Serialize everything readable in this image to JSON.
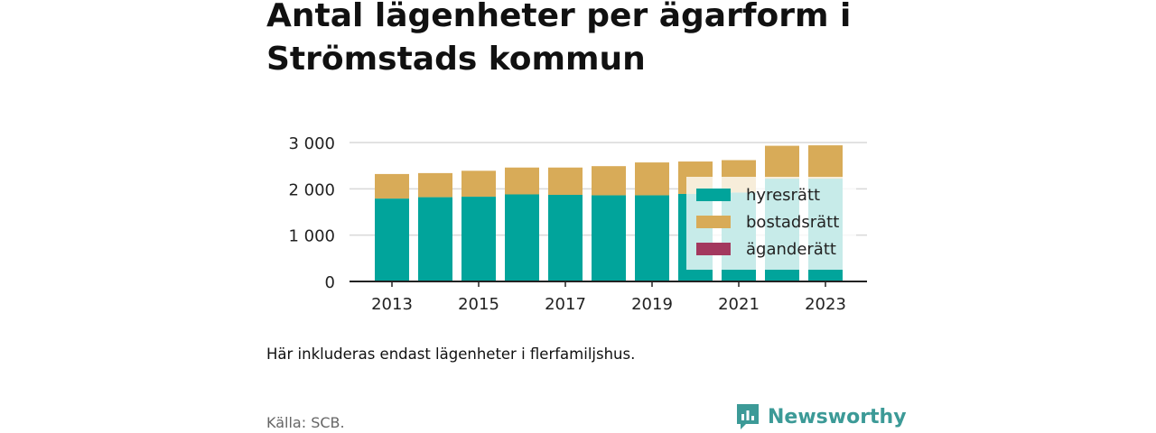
{
  "title": "Antal lägenheter per ägarform i Strömstads kommun",
  "note": "Här inkluderas endast lägenheter i flerfamiljshus.",
  "source": "Källa: SCB.",
  "brand": {
    "name": "Newsworthy",
    "icon": "newsworthy-logo-icon",
    "color": "#3c9a97"
  },
  "chart_data": {
    "type": "bar",
    "stacked": true,
    "categories": [
      "2013",
      "2014",
      "2015",
      "2016",
      "2017",
      "2018",
      "2019",
      "2020",
      "2021",
      "2022",
      "2023"
    ],
    "series": [
      {
        "name": "hyresrätt",
        "color": "#01a49b",
        "values": [
          1790,
          1820,
          1830,
          1880,
          1870,
          1860,
          1860,
          1890,
          1920,
          2220,
          2220
        ]
      },
      {
        "name": "bostadsrätt",
        "color": "#d8ab58",
        "values": [
          530,
          520,
          560,
          580,
          590,
          630,
          710,
          700,
          700,
          710,
          720
        ]
      },
      {
        "name": "äganderätt",
        "color": "#a3385e",
        "values": [
          0,
          0,
          0,
          0,
          0,
          0,
          0,
          0,
          0,
          0,
          0
        ]
      }
    ],
    "x_tick_labels": [
      "2013",
      "2015",
      "2017",
      "2019",
      "2021",
      "2023"
    ],
    "y_tick_labels": [
      "0",
      "1 000",
      "2 000",
      "3 000"
    ],
    "y_ticks": [
      0,
      1000,
      2000,
      3000
    ],
    "ylim": [
      0,
      3000
    ],
    "grid": true,
    "legend_placement": "lower-right"
  }
}
